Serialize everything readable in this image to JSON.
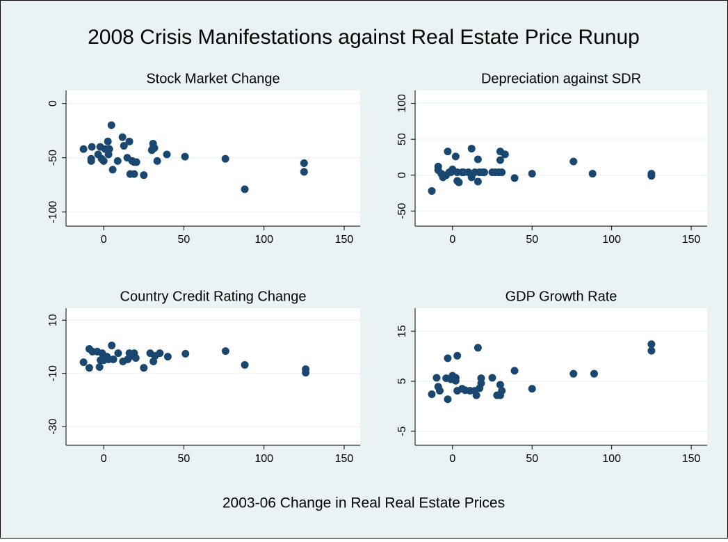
{
  "title": "2008 Crisis Manifestations against Real Estate Price Runup",
  "xlabel": "2003-06 Change in Real Real Estate Prices",
  "chart_data": [
    {
      "type": "scatter",
      "title": "Stock Market Change",
      "color": "#1a476f",
      "grid": true,
      "xlim": [
        -23.5,
        160
      ],
      "xticks": [
        0,
        50,
        100,
        150
      ],
      "ylim": [
        -113,
        12
      ],
      "yticks": [
        -100,
        -50,
        0
      ],
      "x": [
        -12.6,
        -7.8,
        -7.8,
        -7.4,
        -3.5,
        -2.2,
        -1.3,
        0,
        0.9,
        2.6,
        3,
        3.5,
        4.8,
        5.6,
        8.7,
        11.7,
        12.6,
        14.7,
        16,
        16.5,
        17.8,
        19,
        19,
        20.4,
        25,
        30,
        30.8,
        30.8,
        31.6,
        33.4,
        39.4,
        50.7,
        75.9,
        88,
        125,
        125
      ],
      "values": [
        -42,
        -51,
        -53,
        -40,
        -47,
        -40,
        -51,
        -53,
        -42,
        -35,
        -47,
        -42,
        -20,
        -61,
        -53,
        -31,
        -39,
        -50,
        -35,
        -65,
        -53,
        -65,
        -54,
        -54,
        -66,
        -43,
        -37,
        -41,
        -41,
        -53,
        -47,
        -49,
        -51,
        -79,
        -55,
        -63
      ]
    },
    {
      "type": "scatter",
      "title": "Depreciation against SDR",
      "color": "#1a476f",
      "grid": true,
      "xlim": [
        -23.5,
        160
      ],
      "xticks": [
        0,
        50,
        100,
        150
      ],
      "ylim": [
        -71,
        118
      ],
      "yticks": [
        -50,
        0,
        50,
        100
      ],
      "x": [
        -13,
        -9,
        -9,
        -7,
        -6,
        -4,
        -3,
        -2,
        -1,
        0,
        2,
        3,
        3,
        4,
        6,
        7,
        10,
        12,
        12,
        14,
        16,
        16,
        17,
        19,
        20,
        25,
        27,
        29,
        30,
        30,
        31,
        33,
        39,
        50,
        76,
        88,
        125,
        125
      ],
      "values": [
        -22,
        12,
        7,
        2,
        -3,
        0,
        33,
        4,
        4,
        8,
        26,
        -8,
        4,
        -10,
        4,
        4,
        4,
        37,
        -3,
        4,
        22,
        -9,
        4,
        4,
        4,
        4,
        4,
        4,
        33,
        21,
        4,
        29,
        -4,
        2,
        19,
        2,
        2,
        -1
      ]
    },
    {
      "type": "scatter",
      "title": "Country Credit Rating Change",
      "color": "#1a476f",
      "grid": true,
      "xlim": [
        -23.5,
        160
      ],
      "xticks": [
        0,
        50,
        100,
        150
      ],
      "ylim": [
        -37,
        14.5
      ],
      "yticks": [
        -30,
        -10,
        10
      ],
      "x": [
        -12.6,
        -9,
        -9,
        -7,
        -4,
        -2.6,
        -2,
        -1,
        0,
        2,
        3,
        5,
        6,
        9,
        12,
        15,
        16,
        17,
        19,
        20,
        25,
        29,
        31,
        32,
        35,
        40,
        51,
        76,
        88,
        126,
        126
      ],
      "values": [
        -5.8,
        -7.9,
        -0.8,
        -1.8,
        -1.8,
        -7.6,
        -5,
        -2.4,
        -5,
        -3.7,
        -4.7,
        0.5,
        -4.7,
        -2.4,
        -5.5,
        -4.7,
        -2.4,
        -3.4,
        -2.4,
        -4.2,
        -7.9,
        -2.4,
        -5.5,
        -3.4,
        -2.4,
        -3.7,
        -2.6,
        -1.6,
        -6.8,
        -8.4,
        -9.7
      ]
    },
    {
      "type": "scatter",
      "title": "GDP Growth Rate",
      "color": "#1a476f",
      "grid": true,
      "xlim": [
        -23.5,
        160
      ],
      "xticks": [
        0,
        50,
        100,
        150
      ],
      "ylim": [
        -7.8,
        19.6
      ],
      "yticks": [
        -5,
        5,
        15
      ],
      "x": [
        -13,
        -10,
        -9,
        -8,
        -4,
        -3,
        -3,
        -1,
        0,
        2,
        2,
        3,
        3,
        6,
        8,
        11,
        14,
        15,
        16,
        17,
        18,
        18,
        25,
        28,
        30,
        30,
        31,
        39,
        50,
        76,
        89,
        125,
        125
      ],
      "values": [
        2.4,
        5.7,
        3.9,
        3.1,
        5.6,
        9.6,
        1.4,
        5.4,
        6.1,
        5.7,
        5.1,
        3.1,
        10.1,
        3.5,
        3.2,
        3.1,
        3.1,
        2.2,
        11.7,
        3.6,
        5.6,
        4.6,
        5.7,
        2.2,
        2.2,
        4.3,
        3.1,
        7.1,
        3.5,
        6.5,
        6.5,
        12.4,
        11.1
      ]
    }
  ]
}
